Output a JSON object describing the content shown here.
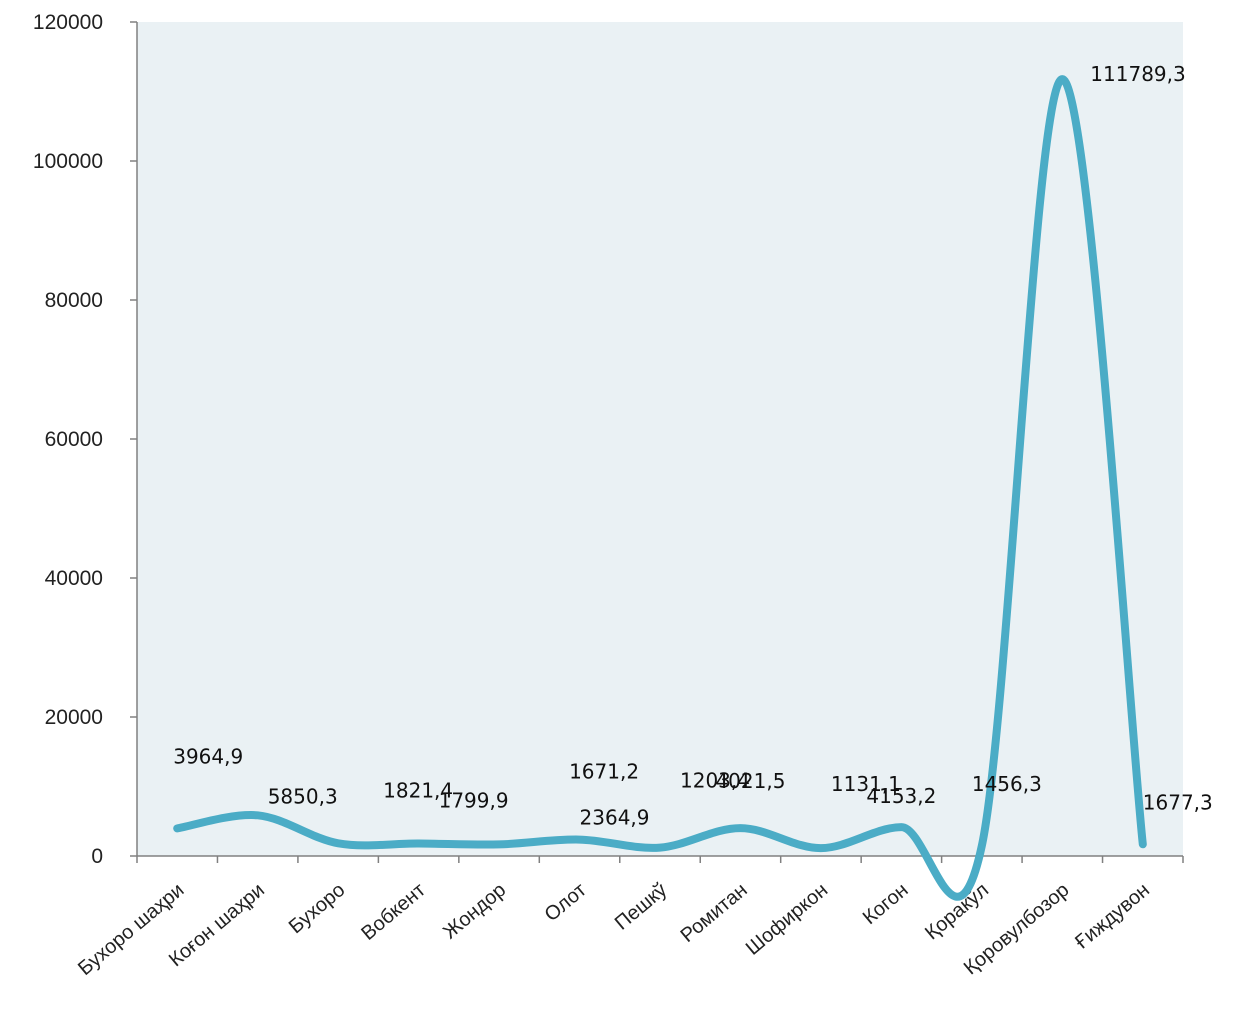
{
  "chart_data": {
    "type": "line",
    "title": "",
    "xlabel": "",
    "ylabel": "",
    "ylim": [
      0,
      120000
    ],
    "yticks": [
      0,
      20000,
      40000,
      60000,
      80000,
      100000,
      120000
    ],
    "ytick_labels": [
      "0",
      "20000",
      "40000",
      "60000",
      "80000",
      "100000",
      "120000"
    ],
    "grid": false,
    "smooth": true,
    "legend": "none",
    "categories": [
      "Бухоро шаҳри",
      "Коғон шаҳри",
      "Бухоро",
      "Вобкент",
      "Жондор",
      "Олот",
      "Пешкў",
      "Ромитан",
      "Шофиркон",
      "Когон",
      "Қоракўл",
      "Қоровулбозор",
      "Ғиждувон"
    ],
    "series": [
      {
        "color": "#4bacc6",
        "values": [
          3964.9,
          5850.3,
          1821.4,
          1799.9,
          1671.2,
          2364.9,
          1203.4,
          4021.5,
          1131.1,
          4153.2,
          1456.3,
          111789.3,
          1677.3
        ]
      }
    ],
    "data_labels": [
      "3964,9",
      "5850,3",
      "1821,4",
      "1799,9",
      "1671,2",
      "2364,9",
      "1203,4",
      "4021,5",
      "1131,1",
      "4153,2",
      "1456,3",
      "111789,3",
      "1677,3"
    ],
    "colors": {
      "plot_background": "#eaf1f4",
      "axis": "#808080",
      "line": "#4bacc6"
    }
  }
}
